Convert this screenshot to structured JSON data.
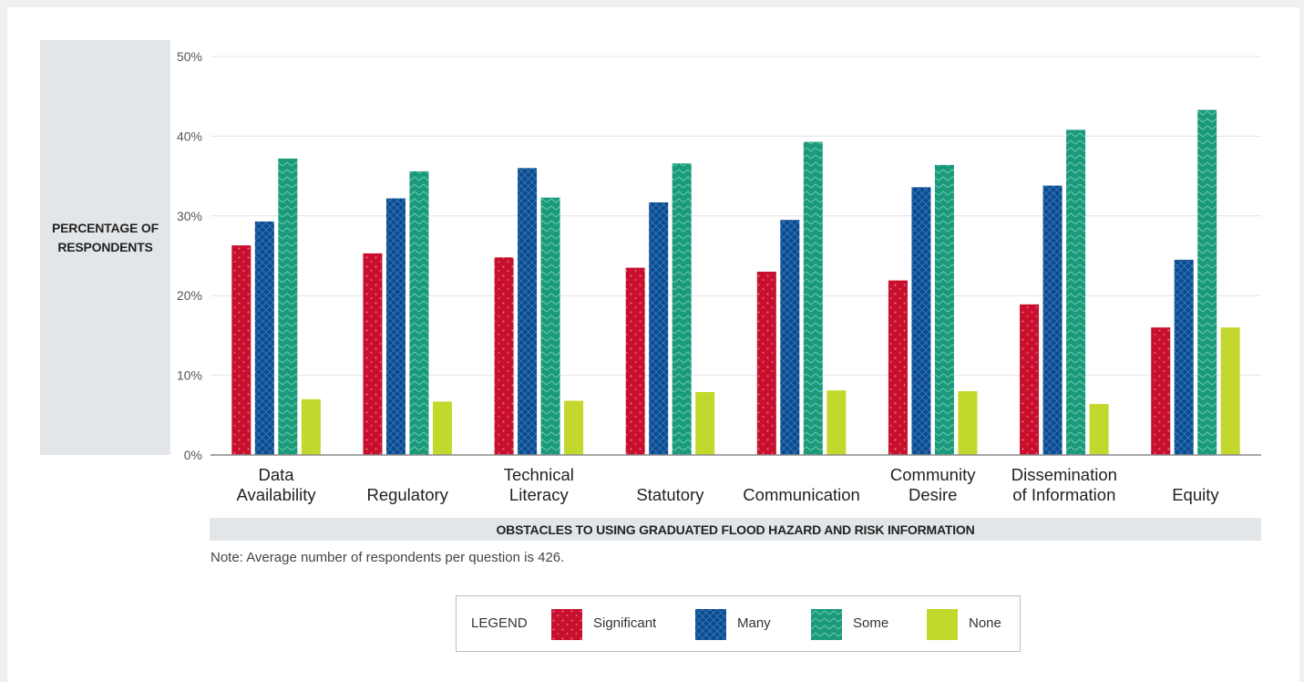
{
  "chart_data": {
    "type": "bar",
    "ylabel": "PERCENTAGE OF\nRESPONDENTS",
    "xlabel": "OBSTACLES TO USING GRADUATED FLOOD HAZARD AND RISK INFORMATION",
    "note": "Note: Average number of respondents per question is 426.",
    "ylim": [
      0,
      50
    ],
    "yticks": [
      "0%",
      "10%",
      "20%",
      "30%",
      "40%",
      "50%"
    ],
    "grid": true,
    "legend_title": "LEGEND",
    "legend_placement": "bottom-center",
    "categories": [
      [
        "Data",
        "Availability"
      ],
      [
        "Regulatory"
      ],
      [
        "Technical",
        "Literacy"
      ],
      [
        "Statutory"
      ],
      [
        "Communication"
      ],
      [
        "Community",
        "Desire"
      ],
      [
        "Dissemination",
        "of Information"
      ],
      [
        "Equity"
      ]
    ],
    "series": [
      {
        "name": "Significant",
        "color": "#c8102e",
        "pattern": "dots",
        "values": [
          26.3,
          25.3,
          24.8,
          23.5,
          23.0,
          21.9,
          18.9,
          16.0
        ]
      },
      {
        "name": "Many",
        "color": "#0a4b8f",
        "pattern": "crosshatch",
        "values": [
          29.3,
          32.2,
          36.0,
          31.7,
          29.5,
          33.6,
          33.8,
          24.5
        ]
      },
      {
        "name": "Some",
        "color": "#1a9a7a",
        "pattern": "zigzag",
        "values": [
          37.2,
          35.6,
          32.3,
          36.6,
          39.3,
          36.4,
          40.8,
          43.3
        ]
      },
      {
        "name": "None",
        "color": "#c3d82c",
        "pattern": "solid",
        "values": [
          7.0,
          6.7,
          6.8,
          7.9,
          8.1,
          8.0,
          6.4,
          16.0
        ]
      }
    ]
  }
}
